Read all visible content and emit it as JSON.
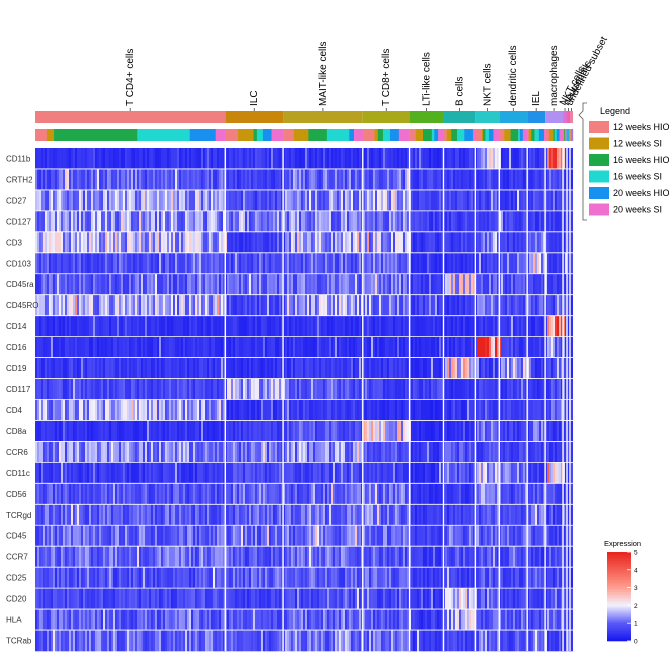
{
  "chart_data": {
    "type": "heatmap",
    "title": "",
    "clusters": [
      {
        "name": "T CD4+ cells",
        "color": "#F08080",
        "weight": 191
      },
      {
        "name": "ILC",
        "color": "#C8860A",
        "weight": 58
      },
      {
        "name": "MAIT-like cells",
        "color": "#B8A020",
        "weight": 80
      },
      {
        "name": "T CD8+ cells",
        "color": "#A8A818",
        "weight": 47
      },
      {
        "name": "LTi-like cells",
        "color": "#55B020",
        "weight": 34
      },
      {
        "name": "B cells",
        "color": "#20B2AA",
        "weight": 32
      },
      {
        "name": "NKT cells",
        "color": "#28C8C8",
        "weight": 24
      },
      {
        "name": "dendritic cells",
        "color": "#20A8E0",
        "weight": 28
      },
      {
        "name": "IEL",
        "color": "#2090E8",
        "weight": 18
      },
      {
        "name": "macrophages",
        "color": "#B090F0",
        "weight": 18
      },
      {
        "name": "NKT cells",
        "color": "#E070D0",
        "weight": 4
      },
      {
        "name": "neutrophils",
        "color": "#F060B0",
        "weight": 3
      },
      {
        "name": "undefined subset",
        "color": "#F080A0",
        "weight": 3
      }
    ],
    "legend": {
      "title": "Legend",
      "entries": [
        {
          "label": "12 weeks HIO",
          "color": "#F28080"
        },
        {
          "label": "12 weeks SI",
          "color": "#C8960A"
        },
        {
          "label": "16 weeks HIO",
          "color": "#1EA84A"
        },
        {
          "label": "16 weeks SI",
          "color": "#20D8D0"
        },
        {
          "label": "20 weeks HIO",
          "color": "#1890F0"
        },
        {
          "label": "20 weeks SI",
          "color": "#F070D0"
        }
      ]
    },
    "markers": [
      "CD11b",
      "CRTH2",
      "CD27",
      "CD127",
      "CD3",
      "CD103",
      "CD45ra",
      "CD45RO",
      "CD14",
      "CD16",
      "CD19",
      "CD117",
      "CD4",
      "CD8a",
      "CCR6",
      "CD11c",
      "CD56",
      "TCRgd",
      "CD45",
      "CCR7",
      "CD25",
      "CD20",
      "HLA",
      "TCRab"
    ],
    "mean_expression": [
      [
        0.4,
        0.5,
        0.4,
        0.4,
        0.3,
        0.5,
        1.9,
        0.4,
        0.5,
        3.2,
        0.4,
        0.5,
        0.5
      ],
      [
        0.9,
        0.6,
        1.0,
        1.0,
        0.6,
        0.4,
        0.6,
        0.5,
        0.5,
        0.6,
        0.6,
        0.5,
        0.5
      ],
      [
        1.3,
        0.7,
        1.3,
        1.5,
        0.7,
        0.8,
        0.8,
        0.6,
        0.7,
        0.6,
        0.6,
        0.5,
        0.5
      ],
      [
        1.3,
        1.2,
        1.2,
        1.1,
        0.6,
        0.5,
        0.7,
        0.6,
        0.6,
        0.5,
        0.6,
        0.5,
        0.5
      ],
      [
        1.6,
        0.5,
        1.5,
        1.5,
        0.5,
        0.5,
        1.3,
        0.6,
        1.2,
        0.5,
        0.6,
        0.5,
        0.5
      ],
      [
        0.8,
        0.7,
        1.0,
        1.1,
        0.4,
        0.4,
        0.7,
        1.0,
        1.9,
        0.5,
        0.6,
        0.5,
        0.5
      ],
      [
        0.9,
        0.9,
        1.0,
        1.0,
        0.5,
        1.9,
        1.0,
        0.8,
        0.7,
        0.6,
        0.6,
        0.5,
        0.5
      ],
      [
        1.5,
        0.7,
        1.5,
        1.3,
        0.6,
        0.5,
        1.2,
        0.9,
        0.8,
        0.8,
        0.6,
        0.5,
        0.5
      ],
      [
        0.4,
        0.4,
        0.4,
        0.4,
        0.3,
        0.4,
        0.6,
        0.6,
        0.4,
        3.4,
        0.5,
        0.5,
        0.5
      ],
      [
        0.4,
        0.4,
        0.4,
        0.4,
        0.3,
        0.5,
        4.2,
        0.6,
        0.5,
        1.1,
        0.5,
        0.5,
        0.5
      ],
      [
        0.5,
        0.4,
        0.5,
        0.5,
        0.3,
        2.1,
        0.6,
        1.5,
        0.5,
        0.6,
        0.5,
        0.5,
        0.5
      ],
      [
        0.7,
        1.6,
        0.8,
        0.6,
        0.7,
        0.4,
        0.6,
        0.6,
        0.5,
        0.7,
        0.5,
        0.5,
        0.5
      ],
      [
        1.4,
        0.4,
        0.6,
        0.4,
        0.3,
        0.4,
        0.6,
        0.6,
        0.5,
        1.0,
        0.5,
        0.5,
        0.5
      ],
      [
        0.4,
        0.5,
        0.8,
        2.1,
        0.3,
        0.4,
        1.0,
        0.6,
        1.1,
        0.5,
        0.5,
        0.5,
        0.5
      ],
      [
        1.2,
        1.0,
        1.3,
        0.8,
        0.5,
        0.8,
        0.8,
        0.7,
        0.6,
        0.6,
        0.6,
        0.5,
        0.5
      ],
      [
        0.5,
        0.7,
        0.7,
        0.6,
        0.4,
        0.8,
        1.6,
        1.3,
        0.6,
        2.7,
        0.6,
        0.5,
        0.5
      ],
      [
        0.8,
        1.0,
        0.9,
        1.0,
        0.4,
        0.5,
        1.3,
        0.7,
        1.0,
        0.7,
        0.6,
        0.5,
        0.5
      ],
      [
        0.9,
        0.9,
        1.0,
        1.1,
        0.5,
        0.6,
        0.9,
        0.7,
        1.2,
        0.6,
        0.6,
        0.5,
        0.5
      ],
      [
        1.0,
        1.0,
        1.0,
        1.0,
        0.6,
        1.0,
        1.0,
        0.9,
        0.9,
        0.8,
        0.6,
        0.5,
        0.5
      ],
      [
        1.0,
        0.8,
        1.0,
        0.9,
        0.5,
        0.8,
        0.8,
        0.8,
        0.6,
        0.7,
        0.6,
        0.5,
        0.5
      ],
      [
        0.8,
        0.9,
        0.9,
        0.9,
        0.5,
        0.6,
        0.9,
        0.7,
        0.7,
        0.6,
        0.6,
        0.5,
        0.5
      ],
      [
        0.7,
        0.6,
        0.7,
        0.7,
        0.4,
        2.0,
        0.8,
        0.7,
        0.6,
        0.7,
        0.6,
        0.5,
        0.5
      ],
      [
        0.9,
        0.8,
        1.0,
        0.9,
        0.5,
        1.6,
        0.9,
        1.0,
        0.7,
        1.1,
        0.6,
        0.5,
        0.5
      ],
      [
        1.0,
        0.8,
        1.1,
        1.1,
        0.5,
        0.7,
        1.0,
        0.7,
        0.9,
        0.7,
        0.6,
        0.5,
        0.5
      ]
    ],
    "colorbar": {
      "title": "Expression",
      "min": 0,
      "max": 5,
      "ticks": [
        "0",
        "1",
        "2",
        "3",
        "4",
        "5"
      ],
      "stops": [
        {
          "value": 0,
          "color": "#1414F0"
        },
        {
          "value": 1,
          "color": "#5A5AF8"
        },
        {
          "value": 2,
          "color": "#F2F2FF"
        },
        {
          "value": 3,
          "color": "#FF9C8C"
        },
        {
          "value": 5,
          "color": "#E8221C"
        }
      ]
    }
  }
}
